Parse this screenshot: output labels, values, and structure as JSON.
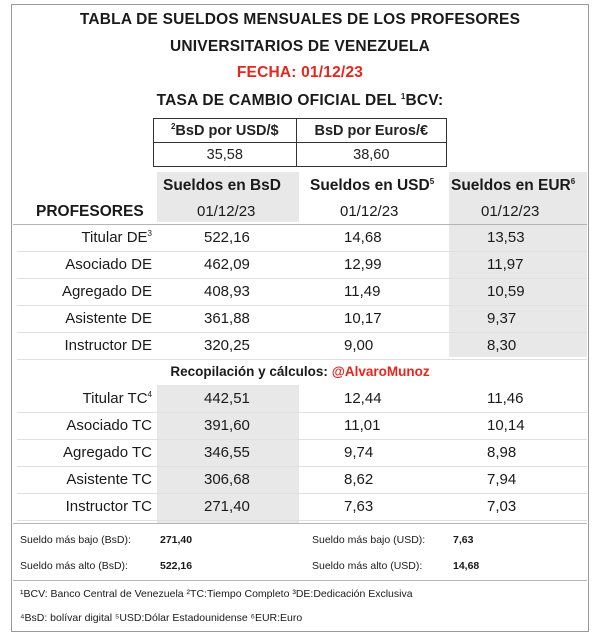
{
  "title_line1": "TABLA DE SUELDOS MENSUALES DE LOS PROFESORES",
  "title_line2": "UNIVERSITARIOS DE VENEZUELA",
  "fecha": "FECHA:  01/12/23",
  "tasa_title_pre": "TASA DE CAMBIO OFICIAL DEL ",
  "tasa_title_sup": "1",
  "tasa_title_post": "BCV:",
  "rates": {
    "h1_sup": "2",
    "h1": "BsD por USD/$",
    "h2": "BsD por Euros/€",
    "v1": "35,58",
    "v2": "38,60"
  },
  "columns": {
    "c1": "Sueldos en BsD",
    "c2": "Sueldos en USD",
    "c2_sup": "5",
    "c3": "Sueldos en EUR",
    "c3_sup": "6",
    "profesores": "PROFESORES",
    "d1": "01/12/23",
    "d2": "01/12/23",
    "d3": "01/12/23"
  },
  "rows_de": [
    {
      "name": "Titular DE",
      "sup": "3",
      "bsd": "522,16",
      "usd": "14,68",
      "eur": "13,53"
    },
    {
      "name": "Asociado DE",
      "sup": "",
      "bsd": "462,09",
      "usd": "12,99",
      "eur": "11,97"
    },
    {
      "name": "Agregado DE",
      "sup": "",
      "bsd": "408,93",
      "usd": "11,49",
      "eur": "10,59"
    },
    {
      "name": "Asistente DE",
      "sup": "",
      "bsd": "361,88",
      "usd": "10,17",
      "eur": "9,37"
    },
    {
      "name": "Instructor DE",
      "sup": "",
      "bsd": "320,25",
      "usd": "9,00",
      "eur": "8,30"
    }
  ],
  "credit_pre": "Recopilación y cálculos: ",
  "credit_handle": "@AlvaroMunoz",
  "rows_tc": [
    {
      "name": "Titular TC",
      "sup": "4",
      "bsd": "442,51",
      "usd": "12,44",
      "eur": "11,46"
    },
    {
      "name": "Asociado TC",
      "sup": "",
      "bsd": "391,60",
      "usd": "11,01",
      "eur": "10,14"
    },
    {
      "name": "Agregado TC",
      "sup": "",
      "bsd": "346,55",
      "usd": "9,74",
      "eur": "8,98"
    },
    {
      "name": "Asistente TC",
      "sup": "",
      "bsd": "306,68",
      "usd": "8,62",
      "eur": "7,94"
    },
    {
      "name": "Instructor TC",
      "sup": "",
      "bsd": "271,40",
      "usd": "7,63",
      "eur": "7,03"
    }
  ],
  "summary": {
    "low_bsd_label": "Sueldo más bajo (BsD):",
    "low_bsd": "271,40",
    "low_usd_label": "Sueldo más bajo (USD):",
    "low_usd": "7,63",
    "high_bsd_label": "Sueldo más alto (BsD):",
    "high_bsd": "522,16",
    "high_usd_label": "Sueldo más alto (USD):",
    "high_usd": "14,68"
  },
  "footnotes": {
    "line1": "¹BCV: Banco Central de Venezuela  ²TC:Tiempo Completo  ³DE:Dedicación Exclusiva",
    "line2": "⁴BsD: bolívar digital  ⁵USD:Dólar Estadounidense  ⁶EUR:Euro"
  },
  "colors": {
    "fecha": "#e5261e",
    "shade": "#e8e8e8"
  }
}
